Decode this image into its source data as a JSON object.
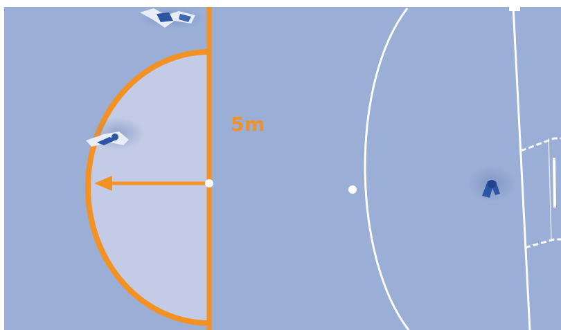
{
  "diagram": {
    "distance_label": "5m"
  },
  "colors": {
    "court": "#9aaed6",
    "zone_fill": "#c3cbe6",
    "accent": "#f39123",
    "court_line": "#ffffff",
    "player": "#2c56a3"
  },
  "icons": [
    "player-top-view-icon",
    "goal-icon"
  ]
}
